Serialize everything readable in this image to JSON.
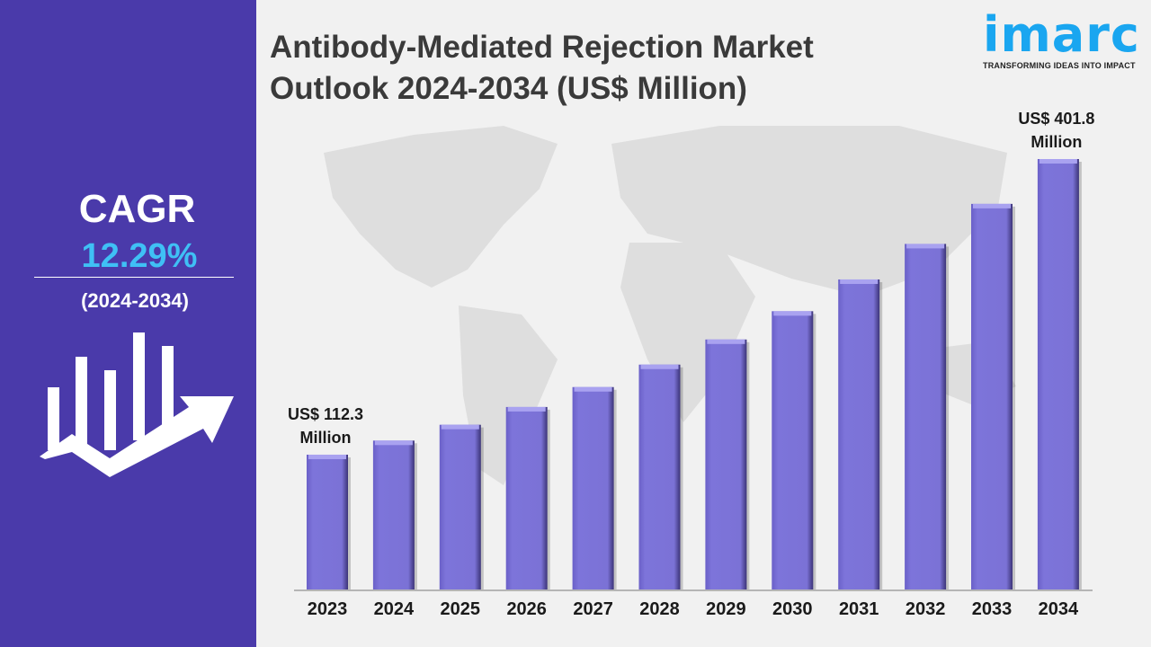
{
  "left_panel": {
    "cagr_label": "CAGR",
    "cagr_value": "12.29%",
    "period": "(2024-2034)",
    "icon": "bar-chart-growth-arrow-icon"
  },
  "header": {
    "title_line1": "Antibody-Mediated Rejection Market",
    "title_line2": "Outlook 2024-2034 (US$ Million)"
  },
  "logo": {
    "text": "imarc",
    "tagline": "TRANSFORMING IDEAS INTO IMPACT",
    "color": "#1aa6f0"
  },
  "chart_data": {
    "type": "bar",
    "title": "Antibody-Mediated Rejection Market Outlook 2024-2034 (US$ Million)",
    "categories": [
      "2023",
      "2024",
      "2025",
      "2026",
      "2027",
      "2028",
      "2029",
      "2030",
      "2031",
      "2032",
      "2033",
      "2034"
    ],
    "values": [
      112.3,
      126.1,
      141.6,
      159.0,
      178.5,
      200.5,
      225.1,
      252.8,
      283.9,
      318.7,
      357.9,
      401.8
    ],
    "annotations": [
      {
        "category": "2023",
        "line1": "US$ 112.3",
        "line2": "Million"
      },
      {
        "category": "2034",
        "line1": "US$ 401.8",
        "line2": "Million"
      }
    ],
    "bar_color": "#7b72d6",
    "grid": false,
    "xlabel": "",
    "ylabel": ""
  }
}
